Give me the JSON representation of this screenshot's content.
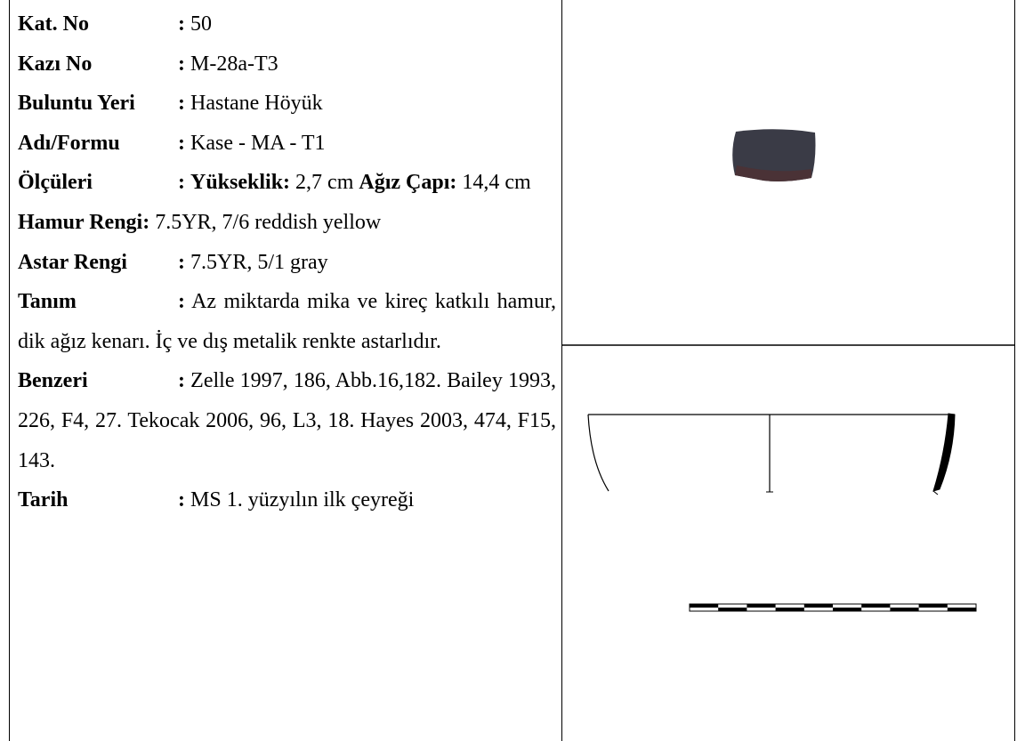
{
  "catalog": {
    "fields": [
      {
        "label": "Kat. No",
        "separator": ":",
        "parts": [
          {
            "text": "50"
          }
        ]
      },
      {
        "label": "Kazı No",
        "separator": ":",
        "parts": [
          {
            "text": "M-28a-T3"
          }
        ]
      },
      {
        "label": "Buluntu Yeri",
        "separator": ":",
        "parts": [
          {
            "text": "Hastane Höyük"
          }
        ]
      },
      {
        "label": "Adı/Formu",
        "separator": ":",
        "parts": [
          {
            "text": "Kase - MA - T1"
          }
        ]
      },
      {
        "label": "Ölçüleri",
        "separator": ":",
        "parts": [
          {
            "text": "Yükseklik:",
            "bold": true
          },
          {
            "text": "2,7 cm"
          },
          {
            "text": "Ağız Çapı:",
            "bold": true
          },
          {
            "text": "14,4 cm"
          }
        ]
      },
      {
        "label": "Hamur Rengi:",
        "parts": [
          {
            "text": "7.5YR, 7/6 reddish yellow"
          }
        ]
      },
      {
        "label": "Astar Rengi",
        "separator": ":",
        "parts": [
          {
            "text": "7.5YR, 5/1 gray"
          }
        ]
      },
      {
        "label": "Tanım",
        "separator": ":",
        "parts": [
          {
            "text": "Az miktarda mika ve kireç katkılı hamur, dik ağız kenarı. İç ve dış metalik renkte astarlıdır."
          }
        ]
      },
      {
        "label": "Benzeri",
        "separator": ":",
        "parts": [
          {
            "text": "Zelle 1997, 186, Abb.16,182. Bailey 1993, 226, F4, 27. Tekocak 2006, 96, L3, 18. Hayes 2003, 474, F15, 143."
          }
        ]
      },
      {
        "label": "Tarih",
        "separator": ":",
        "parts": [
          {
            "text": "MS 1. yüzyılın ilk çeyreği"
          }
        ]
      }
    ]
  }
}
